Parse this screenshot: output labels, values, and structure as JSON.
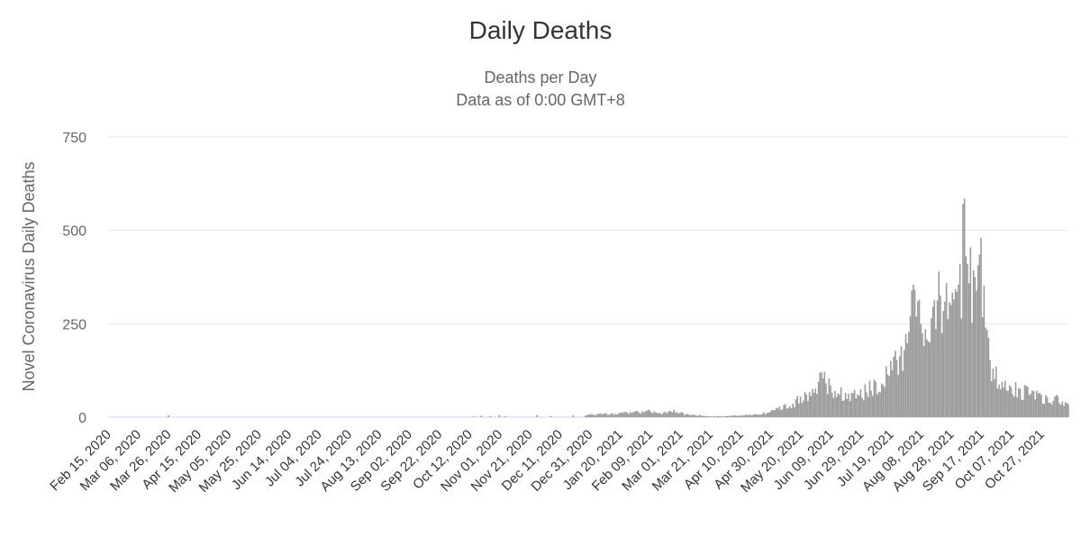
{
  "colors": {
    "bar": "#9b9b9b",
    "grid": "#e6e6e6",
    "axis": "#ccd6eb"
  },
  "chart_data": {
    "type": "bar",
    "title": "Daily Deaths",
    "subtitle": [
      "Deaths per Day",
      "Data as of 0:00 GMT+8"
    ],
    "xlabel": "",
    "ylabel": "Novel Coronavirus Daily Deaths",
    "ylim": [
      0,
      750
    ],
    "yticks": [
      0,
      250,
      500,
      750
    ],
    "grid": true,
    "legend": "none",
    "x_range": [
      "2020-02-15",
      "2021-11-14"
    ],
    "xtick_labels": [
      "Feb 15, 2020",
      "Mar 06, 2020",
      "Mar 26, 2020",
      "Apr 15, 2020",
      "May 05, 2020",
      "May 25, 2020",
      "Jun 14, 2020",
      "Jul 04, 2020",
      "Jul 24, 2020",
      "Aug 13, 2020",
      "Sep 02, 2020",
      "Sep 22, 2020",
      "Oct 12, 2020",
      "Nov 01, 2020",
      "Nov 21, 2020",
      "Dec 11, 2020",
      "Dec 31, 2020",
      "Jan 20, 2021",
      "Feb 09, 2021",
      "Mar 01, 2021",
      "Mar 21, 2021",
      "Apr 10, 2021",
      "Apr 30, 2021",
      "May 20, 2021",
      "Jun 09, 2021",
      "Jun 29, 2021",
      "Jul 19, 2021",
      "Aug 08, 2021",
      "Aug 28, 2021",
      "Sep 17, 2021",
      "Oct 07, 2021",
      "Oct 27, 2021"
    ],
    "series": [
      {
        "values": [
          {
            "x": "2020-03-26",
            "y": 5
          },
          {
            "x": "2020-10-15",
            "y": 2
          },
          {
            "x": "2020-10-20",
            "y": 4
          },
          {
            "x": "2020-10-26",
            "y": 3
          },
          {
            "x": "2020-11-01",
            "y": 6
          },
          {
            "x": "2020-11-05",
            "y": 3
          },
          {
            "x": "2020-11-26",
            "y": 6
          },
          {
            "x": "2020-12-05",
            "y": 3
          },
          {
            "x": "2020-12-20",
            "y": 5
          },
          {
            "x": "2021-01-01",
            "y": 8
          },
          {
            "x": "2021-01-10",
            "y": 10
          },
          {
            "x": "2021-01-20",
            "y": 12
          },
          {
            "x": "2021-01-30",
            "y": 15
          },
          {
            "x": "2021-02-09",
            "y": 18
          },
          {
            "x": "2021-02-15",
            "y": 10
          },
          {
            "x": "2021-02-25",
            "y": 20
          },
          {
            "x": "2021-03-05",
            "y": 8
          },
          {
            "x": "2021-03-15",
            "y": 5
          },
          {
            "x": "2021-03-21",
            "y": 2
          },
          {
            "x": "2021-04-01",
            "y": 3
          },
          {
            "x": "2021-04-10",
            "y": 5
          },
          {
            "x": "2021-04-20",
            "y": 8
          },
          {
            "x": "2021-04-30",
            "y": 15
          },
          {
            "x": "2021-05-10",
            "y": 35
          },
          {
            "x": "2021-05-20",
            "y": 55
          },
          {
            "x": "2021-05-28",
            "y": 75
          },
          {
            "x": "2021-06-03",
            "y": 120
          },
          {
            "x": "2021-06-09",
            "y": 85
          },
          {
            "x": "2021-06-19",
            "y": 65
          },
          {
            "x": "2021-06-29",
            "y": 75
          },
          {
            "x": "2021-07-09",
            "y": 95
          },
          {
            "x": "2021-07-19",
            "y": 150
          },
          {
            "x": "2021-07-28",
            "y": 180
          },
          {
            "x": "2021-08-03",
            "y": 355
          },
          {
            "x": "2021-08-06",
            "y": 310
          },
          {
            "x": "2021-08-08",
            "y": 250
          },
          {
            "x": "2021-08-14",
            "y": 200
          },
          {
            "x": "2021-08-20",
            "y": 390
          },
          {
            "x": "2021-08-28",
            "y": 300
          },
          {
            "x": "2021-09-02",
            "y": 355
          },
          {
            "x": "2021-09-06",
            "y": 585
          },
          {
            "x": "2021-09-08",
            "y": 410
          },
          {
            "x": "2021-09-10",
            "y": 455
          },
          {
            "x": "2021-09-13",
            "y": 375
          },
          {
            "x": "2021-09-17",
            "y": 480
          },
          {
            "x": "2021-09-20",
            "y": 240
          },
          {
            "x": "2021-09-25",
            "y": 130
          },
          {
            "x": "2021-10-01",
            "y": 95
          },
          {
            "x": "2021-10-07",
            "y": 80
          },
          {
            "x": "2021-10-17",
            "y": 85
          },
          {
            "x": "2021-10-27",
            "y": 60
          },
          {
            "x": "2021-11-05",
            "y": 55
          },
          {
            "x": "2021-11-14",
            "y": 35
          }
        ]
      }
    ]
  }
}
